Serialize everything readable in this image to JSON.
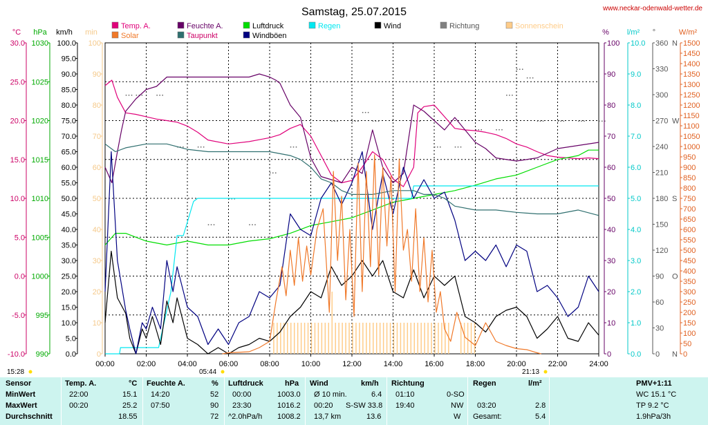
{
  "title": "Samstag, 25.07.2015",
  "website": "www.neckar-odenwald-wetter.de",
  "axes": {
    "temp": {
      "unit": "°C",
      "ticks": [
        "30.0",
        "25.0",
        "20.0",
        "15.0",
        "10.0",
        "5.0",
        "0.0",
        "-5.0",
        "-10.0"
      ],
      "color": "#cc0066"
    },
    "pressure": {
      "unit": "hPa",
      "ticks": [
        "1030",
        "1025",
        "1020",
        "1015",
        "1010",
        "1005",
        "1000",
        "995",
        "990"
      ],
      "color": "#00aa00"
    },
    "wind": {
      "unit": "km/h",
      "ticks": [
        "100.0",
        "95.0",
        "90.0",
        "85.0",
        "80.0",
        "75.0",
        "70.0",
        "65.0",
        "60.0",
        "55.0",
        "50.0",
        "45.0",
        "40.0",
        "35.0",
        "30.0",
        "25.0",
        "20.0",
        "15.0",
        "10.0",
        "5.0",
        "0.0"
      ],
      "color": "#000000"
    },
    "min": {
      "unit": "min",
      "ticks": [
        "100",
        "90",
        "80",
        "70",
        "60",
        "50",
        "40",
        "30",
        "20",
        "10",
        "0"
      ],
      "color": "#f5c98a"
    },
    "percent": {
      "unit": "%",
      "ticks": [
        "100",
        "90",
        "80",
        "70",
        "60",
        "50",
        "40",
        "30",
        "20",
        "10",
        "0"
      ],
      "color": "#660066"
    },
    "rain": {
      "unit": "l/m²",
      "ticks": [
        "10.0",
        "9.0",
        "8.0",
        "7.0",
        "6.0",
        "5.0",
        "4.0",
        "3.0",
        "2.0",
        "1.0",
        "0.0"
      ],
      "color": "#00c8c8"
    },
    "direction": {
      "unit": "°",
      "ticks": [
        "360",
        "330",
        "300",
        "270",
        "240",
        "210",
        "180",
        "150",
        "120",
        "90",
        "60",
        "30",
        "0"
      ],
      "letters": [
        "N",
        "W",
        "S",
        "O",
        "N"
      ],
      "color": "#555555"
    },
    "solar": {
      "unit": "W/m²",
      "ticks": [
        "1500",
        "1450",
        "1400",
        "1350",
        "1300",
        "1250",
        "1200",
        "1150",
        "1100",
        "1050",
        "1000",
        "950",
        "900",
        "850",
        "800",
        "750",
        "700",
        "650",
        "600",
        "550",
        "500",
        "450",
        "400",
        "350",
        "300",
        "250",
        "200",
        "150",
        "100",
        "50",
        "0"
      ],
      "color": "#e06020"
    },
    "time": {
      "ticks": [
        "00:00",
        "02:00",
        "04:00",
        "06:00",
        "08:00",
        "10:00",
        "12:00",
        "14:00",
        "16:00",
        "18:00",
        "20:00",
        "22:00",
        "24:00"
      ]
    }
  },
  "sun": {
    "sunrise_left": "15:28",
    "sunrise": "05:44",
    "sunset": "21:13"
  },
  "legend": [
    {
      "label": "Temp. A.",
      "color": "#e0007a",
      "text_color": "#e0007a"
    },
    {
      "label": "Feuchte A.",
      "color": "#660066",
      "text_color": "#660066"
    },
    {
      "label": "Luftdruck",
      "color": "#00dd00",
      "text_color": "#000000"
    },
    {
      "label": "Regen",
      "color": "#00e8f0",
      "text_color": "#00e8f0"
    },
    {
      "label": "Wind",
      "color": "#000000",
      "text_color": "#000000"
    },
    {
      "label": "Richtung",
      "color": "#808080",
      "text_color": "#555555"
    },
    {
      "label": "Sonnenschein",
      "color": "#ffcc88",
      "text_color": "#ffcc88"
    },
    {
      "label": "Solar",
      "color": "#f07828",
      "text_color": "#f07828"
    },
    {
      "label": "Taupunkt",
      "color": "#2f6f6f",
      "text_color": "#cc0066"
    },
    {
      "label": "Windböen",
      "color": "#000080",
      "text_color": "#000000"
    }
  ],
  "chart_data": {
    "type": "line",
    "title": "Samstag, 25.07.2015",
    "x_unit": "hours",
    "xlim": [
      0,
      24
    ],
    "series": [
      {
        "name": "Temp. A.",
        "axis": "°C",
        "color": "#e0007a",
        "x": [
          0,
          0.33,
          0.6,
          1,
          1.5,
          2,
          2.5,
          3,
          3.5,
          4,
          4.5,
          5,
          6,
          7,
          8,
          8.5,
          9,
          9.5,
          10,
          10.5,
          11,
          11.5,
          12,
          12.5,
          13,
          13.5,
          14,
          14.5,
          15,
          15.2,
          15.5,
          16,
          16.5,
          17,
          17.5,
          18,
          18.5,
          19,
          19.5,
          20,
          20.5,
          21,
          21.5,
          22,
          22.5,
          23,
          23.5,
          24
        ],
        "y": [
          24.5,
          25.2,
          23,
          21,
          20.8,
          20.5,
          20.2,
          20,
          19.8,
          19.3,
          18.5,
          17.5,
          17,
          17.3,
          17.8,
          18.2,
          19,
          19.5,
          18,
          15.5,
          13,
          12,
          12.3,
          14,
          16,
          15,
          12.5,
          11.5,
          14,
          21,
          21.8,
          22,
          20.5,
          19,
          18.8,
          18.7,
          18.5,
          18.2,
          17.7,
          17,
          16.6,
          16,
          15.5,
          15.3,
          15.2,
          15.1,
          15.2,
          15.1
        ]
      },
      {
        "name": "Feuchte A.",
        "axis": "%",
        "color": "#660066",
        "x": [
          0,
          0.33,
          0.6,
          0.8,
          1,
          1.5,
          2,
          2.5,
          3,
          4,
          5,
          6,
          7,
          7.5,
          8,
          8.3,
          8.5,
          9,
          9.5,
          10,
          10.5,
          11,
          11.5,
          12,
          12.5,
          13,
          13.5,
          14,
          14.5,
          15,
          15.5,
          16,
          16.5,
          17,
          17.5,
          18,
          18.5,
          19,
          20,
          21,
          22,
          23,
          24
        ],
        "y": [
          60,
          55,
          65,
          72,
          78,
          82,
          85,
          86,
          89,
          89,
          89,
          89,
          89,
          90,
          89,
          88,
          87,
          80,
          76,
          63,
          57,
          56,
          55,
          60,
          58,
          72,
          60,
          55,
          58,
          80,
          78,
          75,
          72,
          76,
          72,
          68,
          66,
          63,
          62,
          63,
          66,
          67,
          68
        ]
      },
      {
        "name": "Luftdruck",
        "axis": "hPa",
        "color": "#00dd00",
        "x": [
          0,
          0.5,
          1,
          1.5,
          2,
          3,
          4,
          5,
          6,
          7,
          8,
          9,
          10,
          11,
          12,
          13,
          14,
          15,
          16,
          17,
          18,
          19,
          20,
          21,
          22,
          23,
          23.5,
          24
        ],
        "y": [
          1004,
          1005.5,
          1005.5,
          1005,
          1004.5,
          1004,
          1004.5,
          1004,
          1004,
          1004.5,
          1004.8,
          1005.5,
          1006.5,
          1007,
          1007.5,
          1008.5,
          1009.5,
          1010,
          1010.5,
          1011,
          1011.7,
          1012.5,
          1013,
          1014,
          1015,
          1015.5,
          1016.2,
          1016.2
        ]
      },
      {
        "name": "Regen",
        "axis": "l/m²",
        "color": "#00e8f0",
        "x": [
          0,
          0.7,
          0.75,
          2.6,
          3.2,
          3.5,
          3.8,
          4.3,
          4.5,
          10,
          14.9,
          15,
          24
        ],
        "y": [
          0,
          0,
          0.2,
          0.2,
          2.0,
          3.8,
          3.8,
          4.9,
          5.0,
          5.0,
          5.0,
          5.4,
          5.4
        ]
      },
      {
        "name": "Wind",
        "axis": "km/h",
        "color": "#000000",
        "x": [
          0,
          0.3,
          0.6,
          1,
          1.2,
          1.5,
          1.8,
          2,
          2.3,
          2.7,
          3,
          3.3,
          3.5,
          4,
          4.5,
          5,
          5.5,
          6,
          6.5,
          7,
          7.5,
          8,
          8.5,
          9,
          9.5,
          10,
          10.5,
          11,
          11.5,
          12,
          12.5,
          13,
          13.5,
          14,
          14.5,
          15,
          15.5,
          16,
          16.5,
          17,
          17.5,
          18,
          18.5,
          19,
          19.5,
          20,
          20.5,
          21,
          21.5,
          22,
          22.5,
          23,
          23.5,
          24
        ],
        "y": [
          10,
          33,
          18,
          13,
          5,
          0,
          8,
          5,
          12,
          3,
          17,
          10,
          18,
          5,
          3,
          0,
          2,
          0,
          2,
          3,
          5,
          4,
          7,
          12,
          15,
          20,
          18,
          28,
          22,
          25,
          30,
          25,
          30,
          20,
          18,
          27,
          18,
          25,
          22,
          25,
          12,
          10,
          7,
          12,
          14,
          15,
          12,
          5,
          8,
          12,
          5,
          4,
          10,
          6
        ]
      },
      {
        "name": "Windböen",
        "axis": "km/h",
        "color": "#000080",
        "x": [
          0,
          0.3,
          0.6,
          1,
          1.2,
          1.5,
          1.8,
          2,
          2.3,
          2.7,
          3,
          3.3,
          3.5,
          4,
          4.5,
          5,
          5.5,
          6,
          6.5,
          7,
          7.5,
          8,
          8.5,
          9,
          9.5,
          10,
          10.5,
          11,
          11.5,
          12,
          12.5,
          13,
          13.5,
          14,
          14.5,
          15,
          15.5,
          16,
          16.5,
          17,
          17.5,
          18,
          18.5,
          19,
          19.5,
          20,
          20.5,
          21,
          21.5,
          22,
          22.5,
          23,
          23.5,
          24
        ],
        "y": [
          20,
          65,
          30,
          14,
          8,
          0,
          10,
          8,
          15,
          8,
          30,
          20,
          28,
          15,
          12,
          3,
          8,
          3,
          10,
          12,
          20,
          18,
          22,
          45,
          40,
          38,
          50,
          55,
          48,
          55,
          65,
          40,
          58,
          45,
          60,
          50,
          56,
          50,
          52,
          43,
          30,
          33,
          30,
          35,
          28,
          35,
          33,
          20,
          22,
          18,
          12,
          15,
          25,
          20
        ]
      },
      {
        "name": "Taupunkt",
        "axis": "°C",
        "color": "#2f6f6f",
        "x": [
          0,
          0.5,
          1,
          2,
          3,
          4,
          5,
          6,
          7,
          8,
          9,
          9.5,
          10,
          10.5,
          11,
          11.5,
          12,
          13,
          14,
          15,
          15.5,
          16,
          16.5,
          17,
          18,
          19,
          20,
          21,
          22,
          23,
          24
        ],
        "y": [
          17,
          16,
          16.5,
          17,
          17,
          16.3,
          16,
          16,
          16,
          16,
          15.5,
          15,
          14,
          12.5,
          12,
          11,
          10.5,
          10.5,
          11,
          11,
          10.5,
          10.5,
          10,
          9,
          8.5,
          8.5,
          8.2,
          8,
          8,
          8.5,
          7.8
        ]
      },
      {
        "name": "Solar",
        "axis": "W/m²",
        "color": "#f07828",
        "x": [
          5.7,
          6,
          7,
          7.5,
          8,
          8.3,
          8.6,
          8.8,
          9,
          9.2,
          9.4,
          9.6,
          9.8,
          10,
          10.3,
          10.6,
          10.9,
          11.1,
          11.3,
          11.5,
          11.7,
          11.9,
          12.1,
          12.3,
          12.5,
          12.7,
          12.9,
          13.1,
          13.3,
          13.5,
          13.7,
          13.9,
          14.1,
          14.3,
          14.5,
          14.7,
          14.9,
          15.1,
          15.3,
          15.5,
          15.7,
          15.9,
          16.1,
          16.3,
          16.5,
          16.8,
          17.1,
          17.5,
          18,
          18.5,
          19,
          19.5,
          20,
          20.5,
          21,
          21.2
        ],
        "y": [
          0,
          5,
          10,
          30,
          60,
          250,
          420,
          280,
          500,
          330,
          560,
          350,
          520,
          380,
          600,
          700,
          200,
          880,
          450,
          760,
          260,
          600,
          180,
          920,
          300,
          880,
          420,
          960,
          380,
          900,
          520,
          860,
          300,
          940,
          500,
          600,
          350,
          700,
          300,
          560,
          250,
          500,
          200,
          300,
          120,
          60,
          200,
          80,
          40,
          150,
          60,
          40,
          25,
          20,
          5,
          0
        ]
      }
    ]
  },
  "stats": {
    "headers": {
      "sensor": "Sensor",
      "temp": "Temp. A.",
      "temp_unit": "°C",
      "hum": "Feuchte A.",
      "hum_unit": "%",
      "press": "Luftdruck",
      "press_unit": "hPa",
      "wind": "Wind",
      "wind_unit": "km/h",
      "dir": "Richtung",
      "rain": "Regen",
      "rain_unit": "l/m²",
      "pmv": "PMV+1:11"
    },
    "rows": [
      {
        "label": "MinWert",
        "t_time": "22:00",
        "t_val": "15.1",
        "h_time": "14:20",
        "h_val": "52",
        "p_time": "00:00",
        "p_val": "1003.0",
        "w_time": "Ø 10 min.",
        "w_val": "6.4",
        "d_time": "01:10",
        "d_val": "0-SO",
        "r_time": "",
        "r_val": "",
        "extra": "WC 15.1 °C"
      },
      {
        "label": "MaxWert",
        "t_time": "00:20",
        "t_val": "25.2",
        "h_time": "07:50",
        "h_val": "90",
        "p_time": "23:30",
        "p_val": "1016.2",
        "w_time": "00:20",
        "w_dir": "S-SW 33.8",
        "w_val": "",
        "d_time": "19:40",
        "d_val": "NW",
        "r_time": "03:20",
        "r_val": "2.8",
        "extra": "TP 9.2 °C"
      },
      {
        "label": "Durchschnitt",
        "t_time": "",
        "t_val": "18.55",
        "h_time": "",
        "h_val": "72",
        "p_time": "^2.0hPa/h",
        "p_val": "1008.2",
        "w_time": "13,7 km",
        "w_val": "13.6",
        "d_time": "",
        "d_val": "W",
        "r_time": "Gesamt:",
        "r_val": "5.4",
        "extra": "1.9hPa/3h"
      }
    ]
  }
}
